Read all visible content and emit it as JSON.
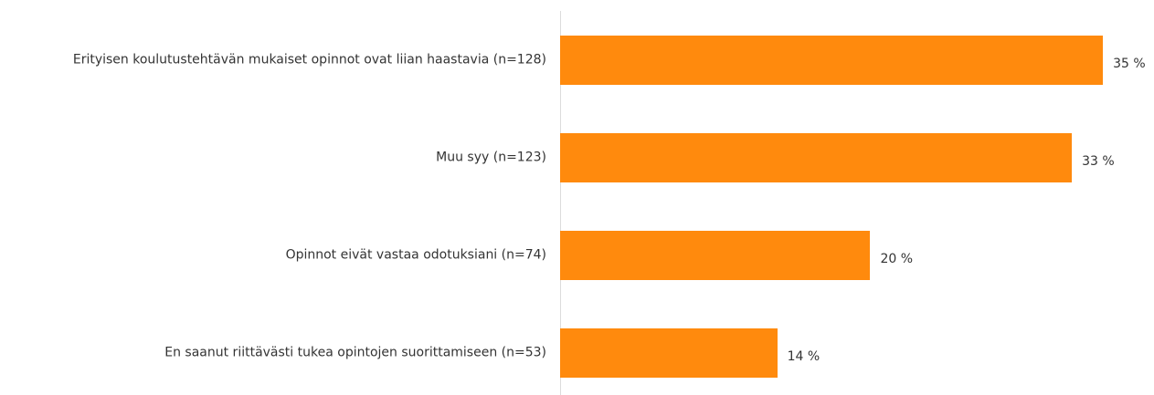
{
  "chart_data": {
    "type": "bar",
    "orientation": "horizontal",
    "categories": [
      "Erityisen koulutustehtävän mukaiset opinnot ovat liian haastavia (n=128)",
      "Muu syy (n=123)",
      "Opinnot eivät vastaa odotuksiani (n=74)",
      "En saanut riittävästi tukea opintojen suorittamiseen (n=53)"
    ],
    "values": [
      35,
      33,
      20,
      14
    ],
    "value_labels": [
      "35 %",
      "33 %",
      "20 %",
      "14 %"
    ],
    "color": "#ff8a0d",
    "xlim": [
      0,
      38
    ]
  }
}
